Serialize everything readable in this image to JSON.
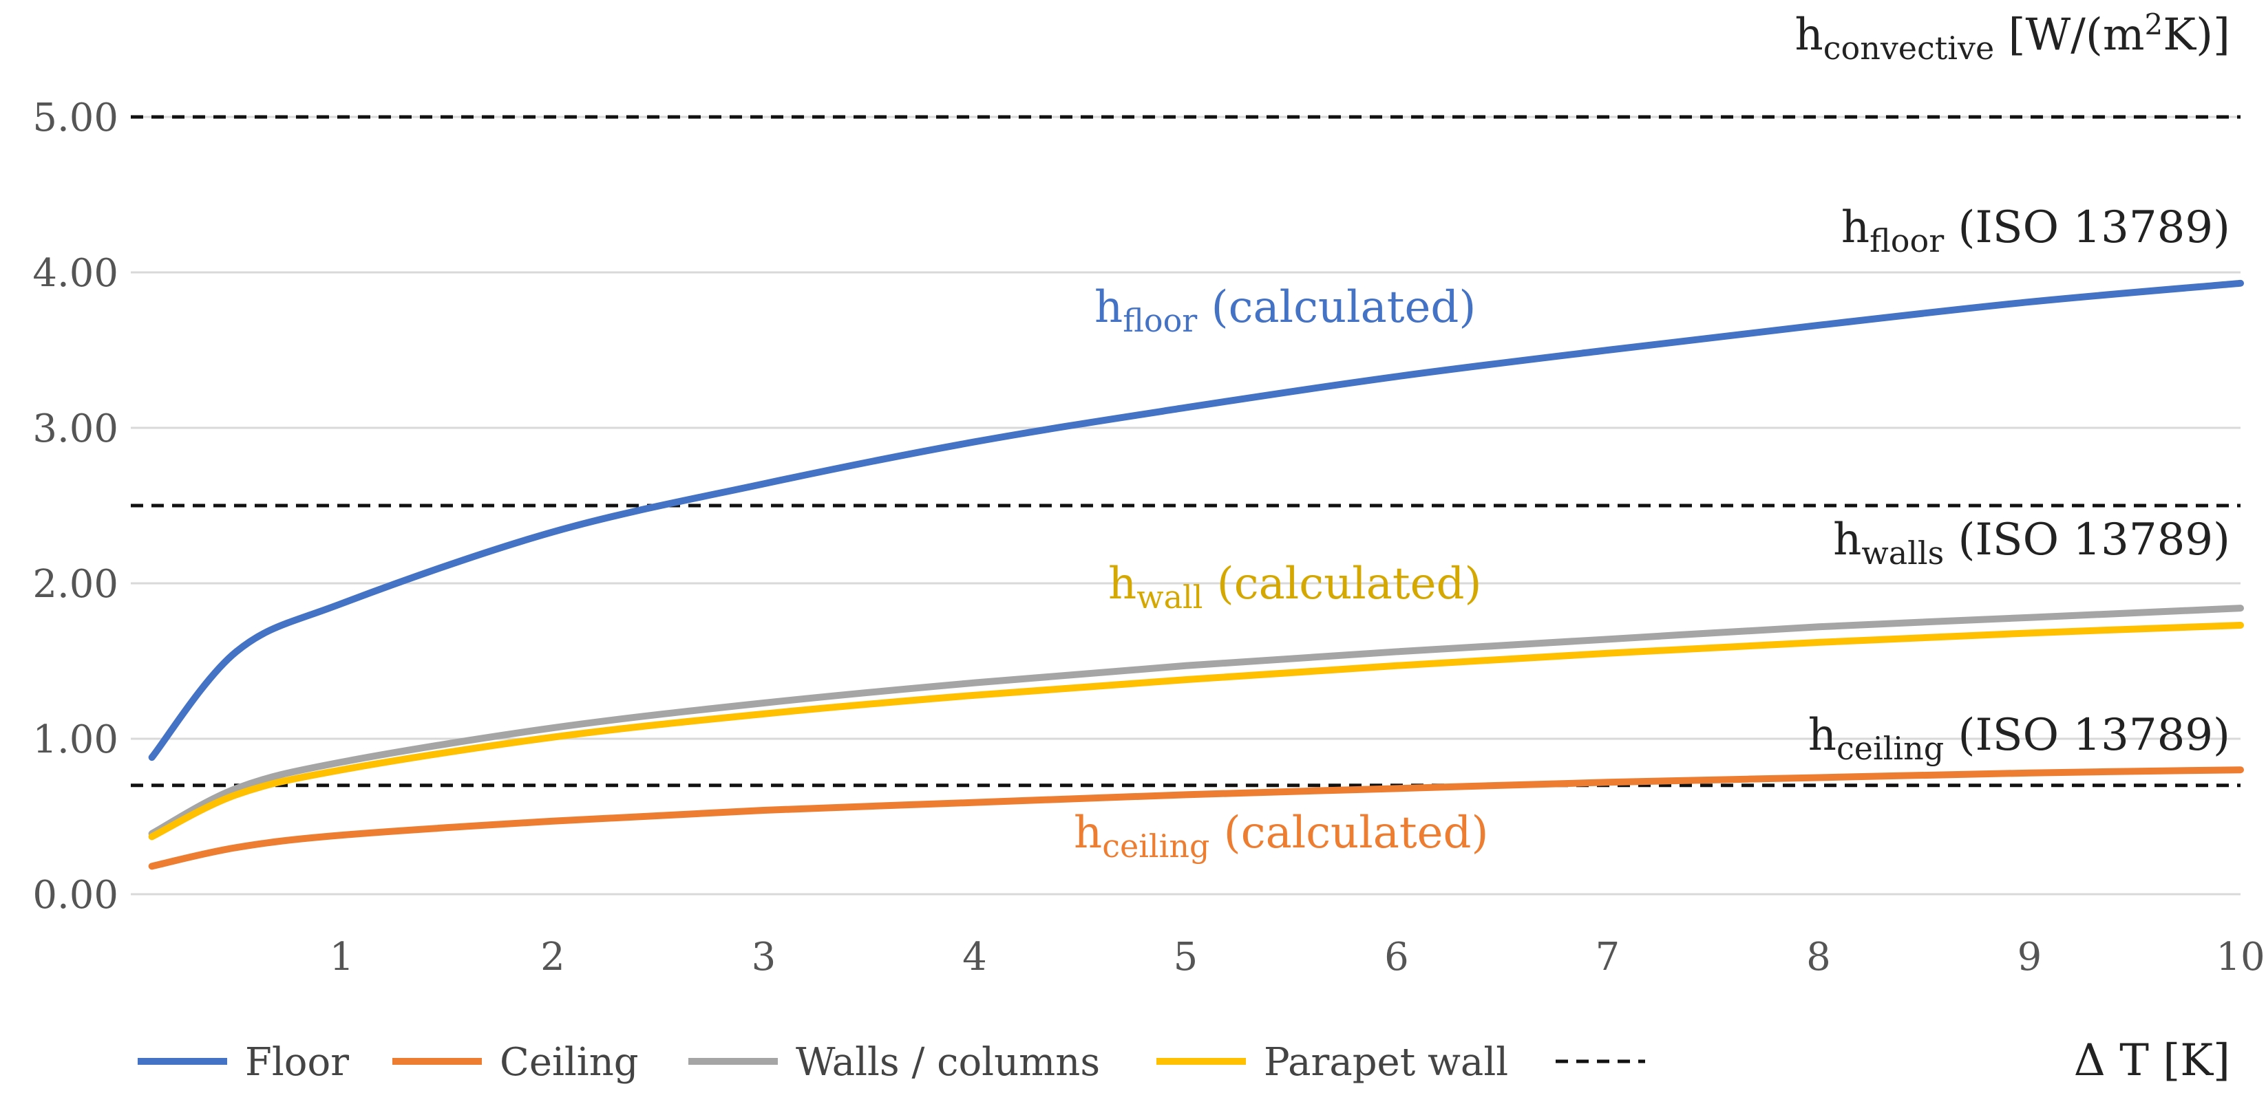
{
  "chart_data": {
    "type": "line",
    "x": [
      0.1,
      0.5,
      1,
      2,
      3,
      4,
      5,
      6,
      7,
      8,
      9,
      10
    ],
    "xlim": [
      0,
      10
    ],
    "ylim": [
      0,
      5
    ],
    "xticks": [
      "1",
      "2",
      "3",
      "4",
      "5",
      "6",
      "7",
      "8",
      "9",
      "10"
    ],
    "yticks": [
      "0.00",
      "1.00",
      "2.00",
      "3.00",
      "4.00",
      "5.00"
    ],
    "xlabel": "Δ T [K]",
    "ylabel": {
      "base": "h",
      "sub": "convective",
      "rest": " [W/(m",
      "sup": "2",
      "tail": "K)]"
    },
    "grid": true,
    "series": [
      {
        "name": "Floor",
        "color": "#4472C4",
        "values": [
          0.88,
          1.56,
          1.87,
          2.33,
          2.64,
          2.91,
          3.13,
          3.33,
          3.5,
          3.66,
          3.81,
          3.93
        ]
      },
      {
        "name": "Ceiling",
        "color": "#ED7D31",
        "values": [
          0.18,
          0.3,
          0.38,
          0.47,
          0.54,
          0.59,
          0.64,
          0.68,
          0.72,
          0.75,
          0.78,
          0.8
        ]
      },
      {
        "name": "Walls / columns",
        "color": "#A5A5A5",
        "values": [
          0.39,
          0.68,
          0.85,
          1.07,
          1.23,
          1.36,
          1.47,
          1.56,
          1.64,
          1.72,
          1.78,
          1.84
        ]
      },
      {
        "name": "Parapet wall",
        "color": "#FFC000",
        "values": [
          0.37,
          0.64,
          0.8,
          1.01,
          1.16,
          1.28,
          1.38,
          1.47,
          1.55,
          1.62,
          1.68,
          1.73
        ]
      }
    ],
    "reference_lines": [
      {
        "name": "h_floor (ISO 13789)",
        "value": 5.0
      },
      {
        "name": "h_walls (ISO 13789)",
        "value": 2.5
      },
      {
        "name": "h_ceiling (ISO 13789)",
        "value": 0.7
      }
    ],
    "annotations": {
      "floor_iso": {
        "base": "h",
        "sub": "floor",
        "rest": " (ISO 13789)"
      },
      "floor_calc": {
        "base": "h",
        "sub": "floor",
        "rest": " (calculated)"
      },
      "walls_iso": {
        "base": "h",
        "sub": "walls",
        "rest": " (ISO 13789)"
      },
      "wall_calc": {
        "base": "h",
        "sub": "wall",
        "rest": " (calculated)"
      },
      "ceiling_iso": {
        "base": "h",
        "sub": "ceiling",
        "rest": " (ISO 13789)"
      },
      "ceiling_calc": {
        "base": "h",
        "sub": "ceiling",
        "rest": " (calculated)"
      }
    },
    "legend": {
      "placement": "bottom-left",
      "entries": [
        {
          "label": "Floor",
          "color": "#4472C4",
          "style": "solid"
        },
        {
          "label": "Ceiling",
          "color": "#ED7D31",
          "style": "solid"
        },
        {
          "label": "Walls / columns",
          "color": "#A5A5A5",
          "style": "solid"
        },
        {
          "label": "Parapet wall",
          "color": "#FFC000",
          "style": "solid"
        },
        {
          "label": "",
          "color": "#111111",
          "style": "dashed"
        }
      ]
    }
  }
}
